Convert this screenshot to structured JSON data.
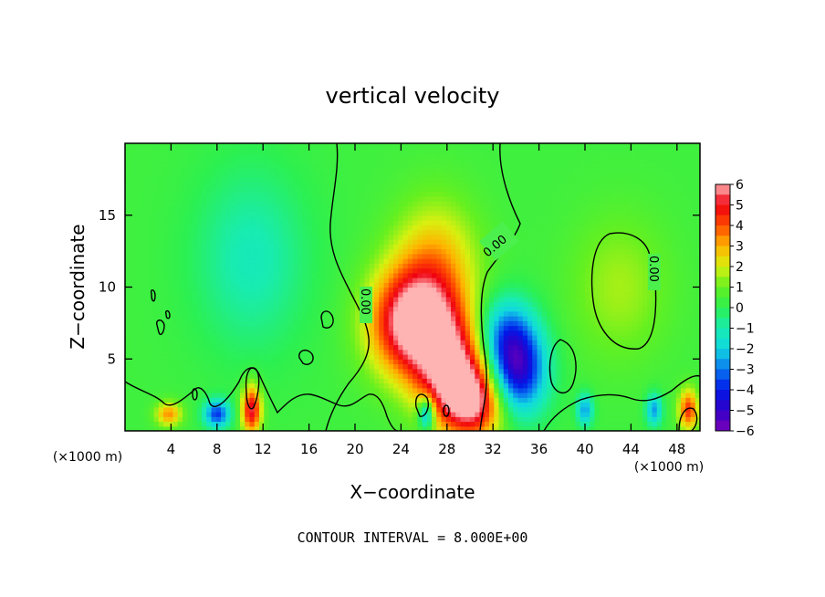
{
  "chart_data": {
    "type": "heatmap",
    "title": "vertical velocity",
    "xlabel": "X−coordinate",
    "ylabel": "Z−coordinate",
    "x_unit_left": "(×1000 m)",
    "x_unit_right": "(×1000 m)",
    "xlim": [
      0,
      50
    ],
    "ylim": [
      0,
      20
    ],
    "x_ticks": [
      4,
      8,
      12,
      16,
      20,
      24,
      28,
      32,
      36,
      40,
      44,
      48
    ],
    "x_tick_labels": [
      "4",
      "8",
      "12",
      "16",
      "20",
      "24",
      "28",
      "32",
      "36",
      "40",
      "44",
      "48"
    ],
    "y_ticks": [
      5,
      10,
      15
    ],
    "y_tick_labels": [
      "5",
      "10",
      "15"
    ],
    "colorbar": {
      "min": -6,
      "max": 6,
      "ticks": [
        6,
        5,
        4,
        3,
        2,
        1,
        0,
        -1,
        -2,
        -3,
        -4,
        -5,
        -6
      ],
      "tick_labels": [
        "6",
        "5",
        "4",
        "3",
        "2",
        "1",
        "0",
        "−1",
        "−2",
        "−3",
        "−4",
        "−5",
        "−6"
      ]
    },
    "contour_label": "0.00",
    "features": [
      {
        "x": 25.0,
        "z": 7.5,
        "value": 6.0,
        "sx": 2.6,
        "sz": 2.6
      },
      {
        "x": 28.5,
        "z": 4.2,
        "value": 5.0,
        "sx": 2.2,
        "sz": 2.6
      },
      {
        "x": 30.5,
        "z": 2.0,
        "value": 4.5,
        "sx": 2.0,
        "sz": 1.8
      },
      {
        "x": 27.0,
        "z": 11.5,
        "value": 2.5,
        "sx": 2.6,
        "sz": 3.2
      },
      {
        "x": 34.0,
        "z": 4.2,
        "value": -5.5,
        "sx": 1.8,
        "sz": 2.2
      },
      {
        "x": 33.0,
        "z": 7.0,
        "value": -2.5,
        "sx": 1.8,
        "sz": 1.8
      },
      {
        "x": 11.0,
        "z": 1.5,
        "value": 5.0,
        "sx": 0.6,
        "sz": 1.2
      },
      {
        "x": 3.8,
        "z": 1.2,
        "value": 3.0,
        "sx": 0.8,
        "sz": 0.6
      },
      {
        "x": 8.0,
        "z": 1.2,
        "value": -4.0,
        "sx": 0.8,
        "sz": 0.7
      },
      {
        "x": 49.0,
        "z": 1.5,
        "value": 4.0,
        "sx": 0.6,
        "sz": 1.0
      },
      {
        "x": 26.2,
        "z": 1.2,
        "value": -4.0,
        "sx": 0.5,
        "sz": 0.8
      },
      {
        "x": 40.0,
        "z": 1.5,
        "value": -3.0,
        "sx": 0.5,
        "sz": 0.8
      },
      {
        "x": 46.0,
        "z": 1.5,
        "value": -3.0,
        "sx": 0.5,
        "sz": 0.8
      },
      {
        "x": 11.0,
        "z": 12.0,
        "value": -1.5,
        "sx": 3.5,
        "sz": 4.5
      },
      {
        "x": 43.0,
        "z": 10.0,
        "value": 1.2,
        "sx": 3.0,
        "sz": 3.5
      }
    ]
  },
  "footer": {
    "contour_interval": "CONTOUR INTERVAL = 8.000E+00"
  }
}
